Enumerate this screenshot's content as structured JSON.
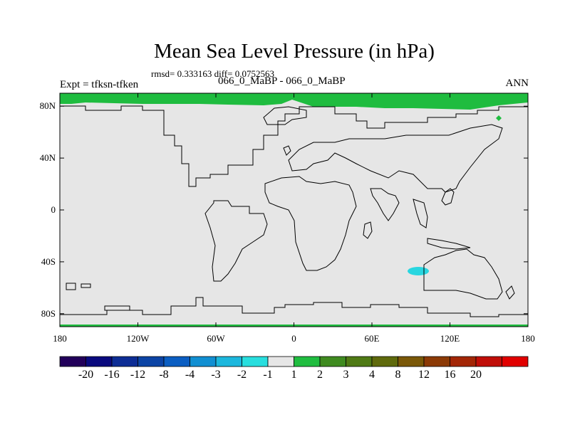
{
  "header": {
    "title": "Mean Sea Level Pressure (in hPa)",
    "stats": "rmsd= 0.333163 diff= 0.0752563",
    "expt_left": "Expt = tfksn-tfken",
    "expt_center": "066_0_MaBP - 066_0_MaBP",
    "season": "ANN"
  },
  "map": {
    "projection": "cylindrical-equidistant",
    "lon_range": [
      -180,
      180
    ],
    "lat_range": [
      -90,
      90
    ],
    "background_color": "#e6e6e6",
    "coastline_color": "#000000",
    "x_ticks": [
      {
        "lon": -180,
        "label": "180"
      },
      {
        "lon": -120,
        "label": "120W"
      },
      {
        "lon": -60,
        "label": "60W"
      },
      {
        "lon": 0,
        "label": "0"
      },
      {
        "lon": 60,
        "label": "60E"
      },
      {
        "lon": 120,
        "label": "120E"
      },
      {
        "lon": 180,
        "label": "180"
      }
    ],
    "y_ticks": [
      {
        "lat": 80,
        "label": "80N"
      },
      {
        "lat": 40,
        "label": "40N"
      },
      {
        "lat": 0,
        "label": "0"
      },
      {
        "lat": -40,
        "label": "40S"
      },
      {
        "lat": -80,
        "label": "80S"
      }
    ],
    "anomalies": [
      {
        "name": "arctic-positive-anomaly",
        "category": "1 to 2",
        "color": "#1fbc3f"
      },
      {
        "name": "indian-ocean-negative-anomaly",
        "category": "-2 to -1",
        "color": "#28d6e0"
      },
      {
        "name": "antarctic-positive-anomaly",
        "category": "1 to 2",
        "color": "#1fbc3f"
      },
      {
        "name": "siberia-positive-spot",
        "category": "1 to 2",
        "color": "#1fbc3f"
      }
    ]
  },
  "colorbar": {
    "boxes": [
      {
        "color": "#22005a"
      },
      {
        "color": "#0a0a7e"
      },
      {
        "color": "#0d2d95"
      },
      {
        "color": "#0c44a5"
      },
      {
        "color": "#0b5ec2"
      },
      {
        "color": "#118fd2"
      },
      {
        "color": "#1cb7dd"
      },
      {
        "color": "#28dede"
      },
      {
        "color": "#e6e6e6"
      },
      {
        "color": "#20bd40"
      },
      {
        "color": "#3f8b20"
      },
      {
        "color": "#4f7a15"
      },
      {
        "color": "#5f6a0c"
      },
      {
        "color": "#7a5808"
      },
      {
        "color": "#8c3a06"
      },
      {
        "color": "#a32606"
      },
      {
        "color": "#c00e08"
      },
      {
        "color": "#e10000"
      }
    ],
    "labels": [
      "-20",
      "-16",
      "-12",
      "-8",
      "-4",
      "-3",
      "-2",
      "-1",
      "1",
      "2",
      "3",
      "4",
      "8",
      "12",
      "16",
      "20"
    ]
  }
}
